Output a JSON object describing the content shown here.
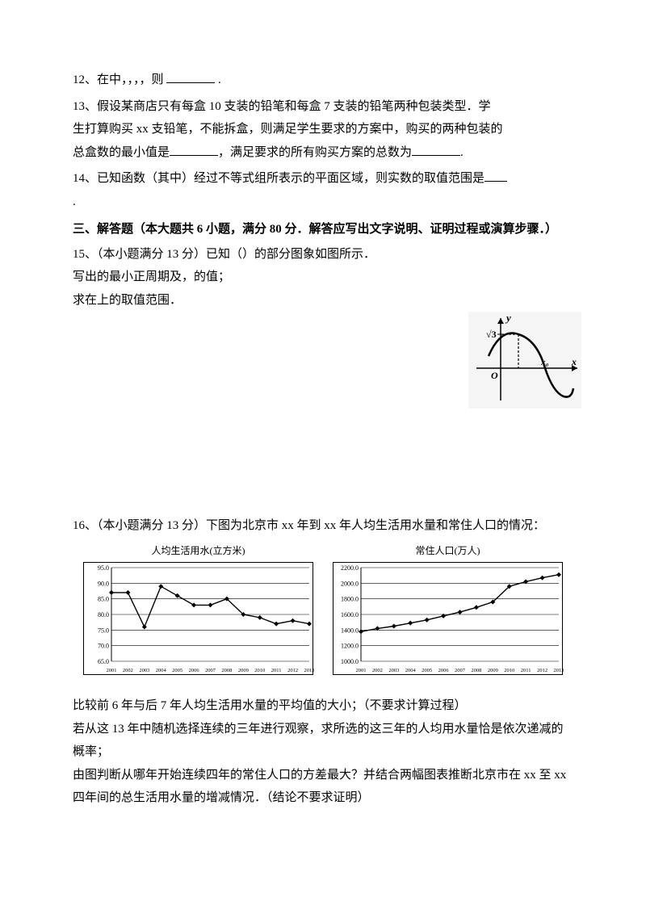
{
  "q12": {
    "text": "12、在中，，，，则",
    "tail": "."
  },
  "q13": {
    "l1": "13、假设某商店只有每盒 10 支装的铅笔和每盒 7 支装的铅笔两种包装类型．学",
    "l2": "生打算购买 xx 支铅笔，不能拆盒，则满足学生要求的方案中，购买的两种包装的",
    "l3a": "总盒数的最小值是",
    "l3b": "，满足要求的所有购买方案的总数为",
    "l3c": "."
  },
  "q14": {
    "l1": "14、已知函数（其中）经过不等式组所表示的平面区域，则实数的取值范围是",
    "l2": "."
  },
  "section3": "三、解答题（本大题共 6 小题，满分 80 分．解答应写出文字说明、证明过程或演算步骤．）",
  "q15": {
    "l1": "15、（本小题满分 13 分）已知（）的部分图象如图所示．",
    "l2": "写出的最小正周期及，的值；",
    "l3": "求在上的取值范围．"
  },
  "sine": {
    "y_label": "y",
    "y_tick": "√3",
    "x_label": "x",
    "origin": "O",
    "x0": "x₀",
    "axis_color": "#000000",
    "curve_color": "#000000",
    "bg": "#f5f5f5"
  },
  "q16": {
    "l1": "16、（本小题满分 13 分）下图为北京市 xx 年到 xx 年人均生活用水量和常住人口的情况：",
    "p1": "比较前 6 年与后 7 年人均生活用水量的平均值的大小；（不要求计算过程）",
    "p2": "若从这 13 年中随机选择连续的三年进行观察，求所选的这三年的人均用水量恰是依次递减的概率；",
    "p3": "由图判断从哪年开始连续四年的常住人口的方差最大？并结合两幅图表推断北京市在 xx 至 xx 四年间的总生活用水量的增减情况．（结论不要求证明）"
  },
  "chart1": {
    "title": "人均生活用水(立方米)",
    "ylim": [
      65,
      95
    ],
    "ytick_step": 5,
    "x_labels": [
      "2001",
      "2002",
      "2003",
      "2004",
      "2005",
      "2006",
      "2007",
      "2008",
      "2009",
      "2010",
      "2011",
      "2012",
      "2013"
    ],
    "values": [
      87,
      87,
      76,
      89,
      86,
      83,
      83,
      85,
      80,
      79,
      77,
      78,
      77
    ],
    "line_color": "#000000",
    "marker_color": "#000000",
    "grid_color": "#000000",
    "bg": "#ffffff",
    "font_size": 8
  },
  "chart2": {
    "title": "常住人口(万人)",
    "ylim": [
      1000,
      2200
    ],
    "ytick_step": 200,
    "x_labels": [
      "2001",
      "2002",
      "2003",
      "2004",
      "2005",
      "2006",
      "2007",
      "2008",
      "2009",
      "2010",
      "2011",
      "2012",
      "2013"
    ],
    "values": [
      1380,
      1420,
      1450,
      1490,
      1530,
      1580,
      1630,
      1690,
      1760,
      1960,
      2020,
      2070,
      2110
    ],
    "line_color": "#000000",
    "marker_color": "#000000",
    "grid_color": "#000000",
    "bg": "#ffffff",
    "font_size": 8
  }
}
